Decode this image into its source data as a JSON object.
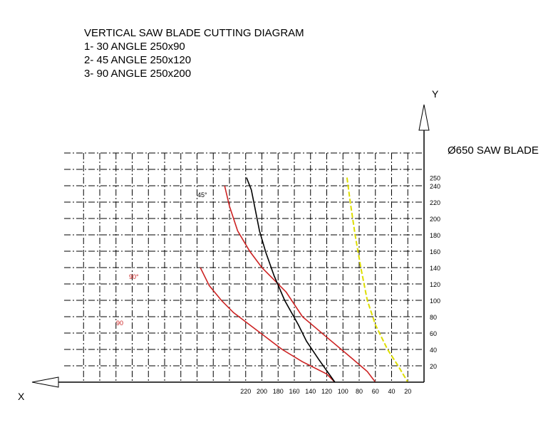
{
  "chart_data": {
    "type": "line",
    "title": "VERTICAL SAW BLADE CUTTING DIAGRAM",
    "subtitle_lines": [
      "1- 30 ANGLE 250x90",
      "2- 45 ANGLE 250x120",
      "3- 90 ANGLE 250x200"
    ],
    "xlabel": "X",
    "ylabel": "Y",
    "annotation": "Ø650 SAW BLADE",
    "x_ticks": [
      "220",
      "200",
      "180",
      "160",
      "140",
      "120",
      "100",
      "80",
      "60",
      "40",
      "20"
    ],
    "y_ticks": [
      "20",
      "40",
      "60",
      "80",
      "100",
      "120",
      "140",
      "160",
      "180",
      "200",
      "220",
      "240",
      "250"
    ],
    "grid": true,
    "series": [
      {
        "label": "90°",
        "color": "#cc2222",
        "points": [
          [
            246,
            240
          ],
          [
            240,
            215
          ],
          [
            230,
            185
          ],
          [
            215,
            160
          ],
          [
            200,
            140
          ],
          [
            170,
            110
          ],
          [
            150,
            80
          ],
          [
            120,
            55
          ],
          [
            90,
            30
          ],
          [
            70,
            13
          ],
          [
            60,
            0
          ]
        ]
      },
      {
        "label": "90",
        "color": "#cc2222",
        "points": [
          [
            276,
            140
          ],
          [
            265,
            118
          ],
          [
            250,
            100
          ],
          [
            235,
            85
          ],
          [
            215,
            70
          ],
          [
            195,
            55
          ],
          [
            175,
            40
          ],
          [
            150,
            25
          ],
          [
            120,
            10
          ],
          [
            110,
            0
          ]
        ]
      },
      {
        "label": "45°",
        "color": "#000000",
        "points": [
          [
            219,
            250
          ],
          [
            213,
            235
          ],
          [
            208,
            210
          ],
          [
            203,
            185
          ],
          [
            195,
            158
          ],
          [
            185,
            130
          ],
          [
            172,
            100
          ],
          [
            155,
            70
          ],
          [
            145,
            50
          ],
          [
            130,
            28
          ],
          [
            110,
            0
          ]
        ]
      },
      {
        "label": "",
        "color": "#dddd00",
        "points": [
          [
            95,
            250
          ],
          [
            91,
            220
          ],
          [
            85,
            180
          ],
          [
            78,
            140
          ],
          [
            70,
            100
          ],
          [
            60,
            70
          ],
          [
            45,
            40
          ],
          [
            32,
            20
          ],
          [
            20,
            0
          ]
        ]
      }
    ]
  }
}
